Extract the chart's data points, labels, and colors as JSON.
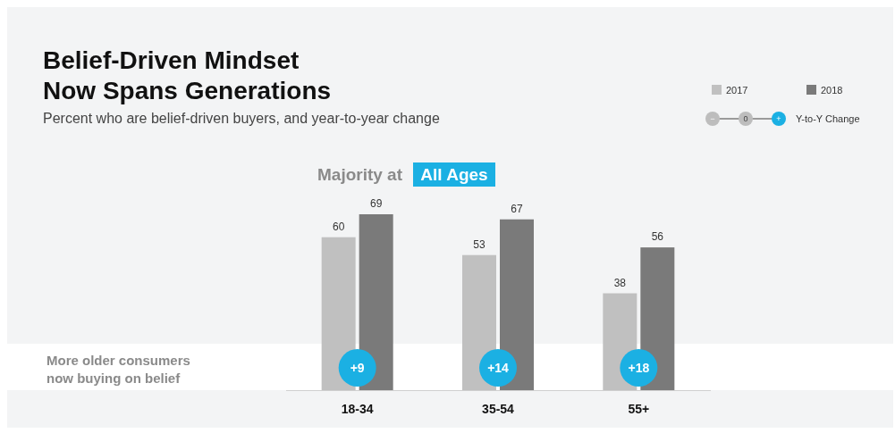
{
  "chart_data": {
    "type": "bar",
    "title": "Belief-Driven Mindset\nNow Spans Generations",
    "subtitle": "Percent who are belief-driven buyers, and year-to-year change",
    "categories": [
      "18-34",
      "35-54",
      "55+"
    ],
    "series": [
      {
        "name": "2017",
        "color": "#c0c0c0",
        "values": [
          60,
          53,
          38
        ]
      },
      {
        "name": "2018",
        "color": "#7a7a7a",
        "values": [
          69,
          67,
          56
        ]
      }
    ],
    "data_labels": true,
    "legend": "top right",
    "tick_labels": "x",
    "annotations": [
      "Majority at",
      "All Ages",
      "More older consumers\nnow buying on belief",
      "Y-to-Y Change",
      "−",
      "0",
      "+",
      {
        "text": "+9",
        "x": "18-34"
      },
      {
        "text": "+14",
        "x": "35-54"
      },
      {
        "text": "+18",
        "x": "55+"
      }
    ]
  }
}
